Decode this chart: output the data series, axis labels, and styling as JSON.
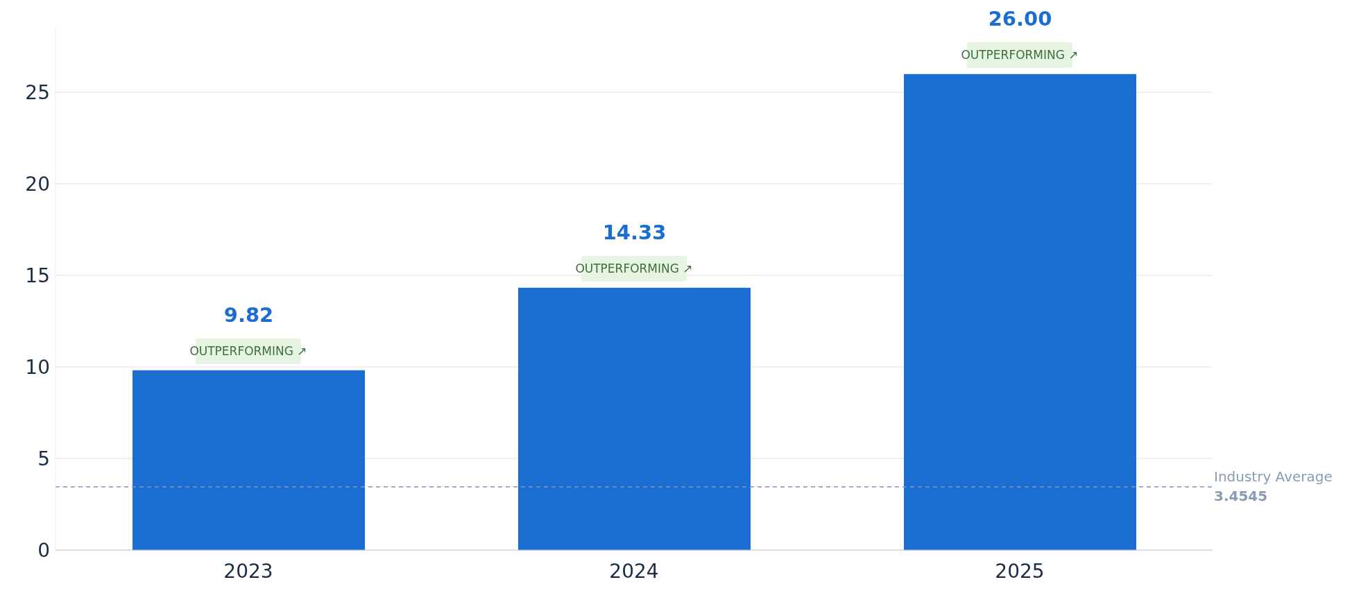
{
  "chart_data": {
    "type": "bar",
    "categories": [
      "2023",
      "2024",
      "2025"
    ],
    "values": [
      9.82,
      14.33,
      26.0
    ],
    "color": "#1b6dd2",
    "value_labels": [
      "9.82",
      "14.33",
      "26.00"
    ],
    "ylim": [
      0,
      28.6
    ],
    "yticks": [
      0,
      5,
      10,
      15,
      20,
      25
    ],
    "grid": "y",
    "ref_lines": [
      {
        "axis": "y",
        "value": 3.4545,
        "label": "Industry Average\n3.4545",
        "color": "#7f95b3",
        "line_style": "dashed"
      }
    ],
    "annotations": [
      {
        "text": "OUTPERFORMING ↗",
        "x": "2023",
        "y": 9.82
      },
      {
        "text": "OUTPERFORMING ↗",
        "x": "2024",
        "y": 14.33
      },
      {
        "text": "OUTPERFORMING ↗",
        "x": "2025",
        "y": 26.0
      }
    ]
  }
}
